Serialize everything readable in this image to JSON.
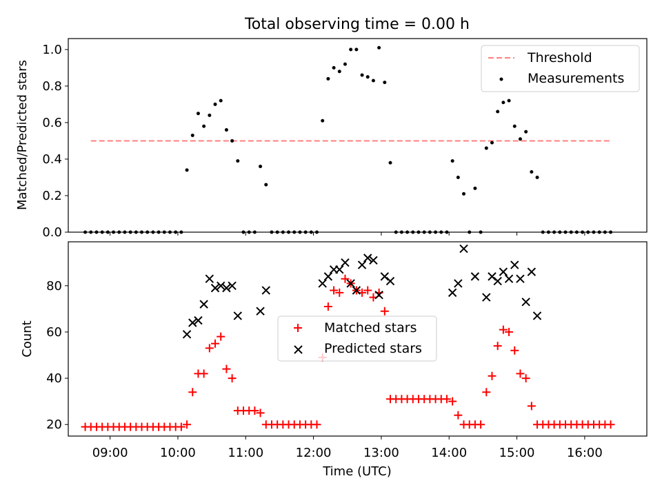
{
  "title": "Total observing time = 0.00 h",
  "xlabel": "Time (UTC)",
  "x_ticks": [
    "09:00",
    "10:00",
    "11:00",
    "12:00",
    "13:00",
    "14:00",
    "15:00",
    "16:00"
  ],
  "colors": {
    "threshold": "#ff7f7f",
    "measurements": "#000000",
    "matched": "#ff0000",
    "predicted": "#000000"
  },
  "chart_data": [
    {
      "type": "scatter",
      "ylabel": "Matched/Predicted stars",
      "xlim": [
        "08:23",
        "16:55"
      ],
      "ylim": [
        0,
        1.06
      ],
      "y_ticks": [
        "0.0",
        "0.2",
        "0.4",
        "0.6",
        "0.8",
        "1.0"
      ],
      "legend": {
        "placement": "top-right",
        "entries": [
          "Threshold",
          "Measurements"
        ]
      },
      "threshold": {
        "name": "Threshold",
        "value": 0.5,
        "x_range": [
          "08:43",
          "16:22"
        ]
      },
      "series": [
        {
          "name": "Measurements",
          "points": [
            [
              "08:38",
              0
            ],
            [
              "08:43",
              0
            ],
            [
              "08:48",
              0
            ],
            [
              "08:53",
              0
            ],
            [
              "08:58",
              0
            ],
            [
              "09:03",
              0
            ],
            [
              "09:08",
              0
            ],
            [
              "09:13",
              0
            ],
            [
              "09:18",
              0
            ],
            [
              "09:23",
              0
            ],
            [
              "09:28",
              0
            ],
            [
              "09:33",
              0
            ],
            [
              "09:38",
              0
            ],
            [
              "09:43",
              0
            ],
            [
              "09:48",
              0
            ],
            [
              "09:53",
              0
            ],
            [
              "09:58",
              0
            ],
            [
              "10:03",
              0
            ],
            [
              "10:08",
              0.34
            ],
            [
              "10:13",
              0.53
            ],
            [
              "10:18",
              0.65
            ],
            [
              "10:23",
              0.58
            ],
            [
              "10:28",
              0.64
            ],
            [
              "10:33",
              0.7
            ],
            [
              "10:38",
              0.72
            ],
            [
              "10:43",
              0.56
            ],
            [
              "10:48",
              0.5
            ],
            [
              "10:53",
              0.39
            ],
            [
              "10:58",
              0
            ],
            [
              "11:03",
              0
            ],
            [
              "11:08",
              0
            ],
            [
              "11:13",
              0.36
            ],
            [
              "11:18",
              0.26
            ],
            [
              "11:23",
              0
            ],
            [
              "11:28",
              0
            ],
            [
              "11:33",
              0
            ],
            [
              "11:38",
              0
            ],
            [
              "11:43",
              0
            ],
            [
              "11:48",
              0
            ],
            [
              "11:53",
              0
            ],
            [
              "11:58",
              0
            ],
            [
              "12:03",
              0
            ],
            [
              "12:08",
              0.61
            ],
            [
              "12:13",
              0.84
            ],
            [
              "12:18",
              0.9
            ],
            [
              "12:23",
              0.88
            ],
            [
              "12:28",
              0.92
            ],
            [
              "12:33",
              1.0
            ],
            [
              "12:38",
              1.0
            ],
            [
              "12:43",
              0.86
            ],
            [
              "12:48",
              0.85
            ],
            [
              "12:53",
              0.83
            ],
            [
              "12:58",
              1.01
            ],
            [
              "13:03",
              0.82
            ],
            [
              "13:08",
              0.38
            ],
            [
              "13:13",
              0
            ],
            [
              "13:18",
              0
            ],
            [
              "13:23",
              0
            ],
            [
              "13:28",
              0
            ],
            [
              "13:33",
              0
            ],
            [
              "13:38",
              0
            ],
            [
              "13:43",
              0
            ],
            [
              "13:48",
              0
            ],
            [
              "13:53",
              0
            ],
            [
              "13:58",
              0
            ],
            [
              "14:03",
              0.39
            ],
            [
              "14:08",
              0.3
            ],
            [
              "14:13",
              0.21
            ],
            [
              "14:18",
              0
            ],
            [
              "14:23",
              0.24
            ],
            [
              "14:28",
              0
            ],
            [
              "14:33",
              0.46
            ],
            [
              "14:38",
              0.49
            ],
            [
              "14:43",
              0.66
            ],
            [
              "14:48",
              0.71
            ],
            [
              "14:53",
              0.72
            ],
            [
              "14:58",
              0.58
            ],
            [
              "15:03",
              0.51
            ],
            [
              "15:08",
              0.55
            ],
            [
              "15:13",
              0.33
            ],
            [
              "15:18",
              0.3
            ],
            [
              "15:23",
              0
            ],
            [
              "15:28",
              0
            ],
            [
              "15:33",
              0
            ],
            [
              "15:38",
              0
            ],
            [
              "15:43",
              0
            ],
            [
              "15:48",
              0
            ],
            [
              "15:53",
              0
            ],
            [
              "15:58",
              0
            ],
            [
              "16:03",
              0
            ],
            [
              "16:08",
              0
            ],
            [
              "16:13",
              0
            ],
            [
              "16:18",
              0
            ],
            [
              "16:23",
              0
            ]
          ]
        }
      ]
    },
    {
      "type": "scatter",
      "ylabel": "Count",
      "xlim": [
        "08:23",
        "16:55"
      ],
      "ylim": [
        15,
        99
      ],
      "y_ticks": [
        "20",
        "40",
        "60",
        "80"
      ],
      "legend": {
        "placement": "center",
        "entries": [
          "Matched stars",
          "Predicted stars"
        ]
      },
      "series": [
        {
          "name": "Matched stars",
          "marker": "+",
          "points": [
            [
              "08:38",
              19
            ],
            [
              "08:43",
              19
            ],
            [
              "08:48",
              19
            ],
            [
              "08:53",
              19
            ],
            [
              "08:58",
              19
            ],
            [
              "09:03",
              19
            ],
            [
              "09:08",
              19
            ],
            [
              "09:13",
              19
            ],
            [
              "09:18",
              19
            ],
            [
              "09:23",
              19
            ],
            [
              "09:28",
              19
            ],
            [
              "09:33",
              19
            ],
            [
              "09:38",
              19
            ],
            [
              "09:43",
              19
            ],
            [
              "09:48",
              19
            ],
            [
              "09:53",
              19
            ],
            [
              "09:58",
              19
            ],
            [
              "10:03",
              19
            ],
            [
              "10:08",
              20
            ],
            [
              "10:13",
              34
            ],
            [
              "10:18",
              42
            ],
            [
              "10:23",
              42
            ],
            [
              "10:28",
              53
            ],
            [
              "10:33",
              55
            ],
            [
              "10:38",
              58
            ],
            [
              "10:43",
              44
            ],
            [
              "10:48",
              40
            ],
            [
              "10:53",
              26
            ],
            [
              "10:58",
              26
            ],
            [
              "11:03",
              26
            ],
            [
              "11:08",
              26
            ],
            [
              "11:13",
              25
            ],
            [
              "11:18",
              20
            ],
            [
              "11:23",
              20
            ],
            [
              "11:28",
              20
            ],
            [
              "11:33",
              20
            ],
            [
              "11:38",
              20
            ],
            [
              "11:43",
              20
            ],
            [
              "11:48",
              20
            ],
            [
              "11:53",
              20
            ],
            [
              "11:58",
              20
            ],
            [
              "12:03",
              20
            ],
            [
              "12:08",
              49
            ],
            [
              "12:13",
              71
            ],
            [
              "12:18",
              78
            ],
            [
              "12:23",
              77
            ],
            [
              "12:28",
              83
            ],
            [
              "12:33",
              81
            ],
            [
              "12:38",
              78
            ],
            [
              "12:43",
              77
            ],
            [
              "12:48",
              78
            ],
            [
              "12:53",
              75
            ],
            [
              "12:58",
              77
            ],
            [
              "13:03",
              69
            ],
            [
              "13:08",
              31
            ],
            [
              "13:13",
              31
            ],
            [
              "13:18",
              31
            ],
            [
              "13:23",
              31
            ],
            [
              "13:28",
              31
            ],
            [
              "13:33",
              31
            ],
            [
              "13:38",
              31
            ],
            [
              "13:43",
              31
            ],
            [
              "13:48",
              31
            ],
            [
              "13:53",
              31
            ],
            [
              "13:58",
              31
            ],
            [
              "14:03",
              30
            ],
            [
              "14:08",
              24
            ],
            [
              "14:13",
              20
            ],
            [
              "14:18",
              20
            ],
            [
              "14:23",
              20
            ],
            [
              "14:28",
              20
            ],
            [
              "14:33",
              34
            ],
            [
              "14:38",
              41
            ],
            [
              "14:43",
              54
            ],
            [
              "14:48",
              61
            ],
            [
              "14:53",
              60
            ],
            [
              "14:58",
              52
            ],
            [
              "15:03",
              42
            ],
            [
              "15:08",
              40
            ],
            [
              "15:13",
              28
            ],
            [
              "15:18",
              20
            ],
            [
              "15:23",
              20
            ],
            [
              "15:28",
              20
            ],
            [
              "15:33",
              20
            ],
            [
              "15:38",
              20
            ],
            [
              "15:43",
              20
            ],
            [
              "15:48",
              20
            ],
            [
              "15:53",
              20
            ],
            [
              "15:58",
              20
            ],
            [
              "16:03",
              20
            ],
            [
              "16:08",
              20
            ],
            [
              "16:13",
              20
            ],
            [
              "16:18",
              20
            ],
            [
              "16:23",
              20
            ]
          ]
        },
        {
          "name": "Predicted stars",
          "marker": "x",
          "points": [
            [
              "10:08",
              59
            ],
            [
              "10:13",
              64
            ],
            [
              "10:18",
              65
            ],
            [
              "10:23",
              72
            ],
            [
              "10:28",
              83
            ],
            [
              "10:33",
              79
            ],
            [
              "10:38",
              80
            ],
            [
              "10:43",
              79
            ],
            [
              "10:48",
              80
            ],
            [
              "10:53",
              67
            ],
            [
              "11:13",
              69
            ],
            [
              "11:18",
              78
            ],
            [
              "12:08",
              81
            ],
            [
              "12:13",
              84
            ],
            [
              "12:18",
              87
            ],
            [
              "12:23",
              87
            ],
            [
              "12:28",
              90
            ],
            [
              "12:33",
              81
            ],
            [
              "12:38",
              78
            ],
            [
              "12:43",
              89
            ],
            [
              "12:48",
              92
            ],
            [
              "12:53",
              91
            ],
            [
              "12:58",
              76
            ],
            [
              "13:03",
              84
            ],
            [
              "13:08",
              82
            ],
            [
              "14:03",
              77
            ],
            [
              "14:08",
              81
            ],
            [
              "14:13",
              96
            ],
            [
              "14:23",
              84
            ],
            [
              "14:33",
              75
            ],
            [
              "14:38",
              84
            ],
            [
              "14:43",
              82
            ],
            [
              "14:48",
              86
            ],
            [
              "14:53",
              83
            ],
            [
              "14:58",
              89
            ],
            [
              "15:03",
              83
            ],
            [
              "15:08",
              73
            ],
            [
              "15:13",
              86
            ],
            [
              "15:18",
              67
            ]
          ]
        }
      ]
    }
  ]
}
